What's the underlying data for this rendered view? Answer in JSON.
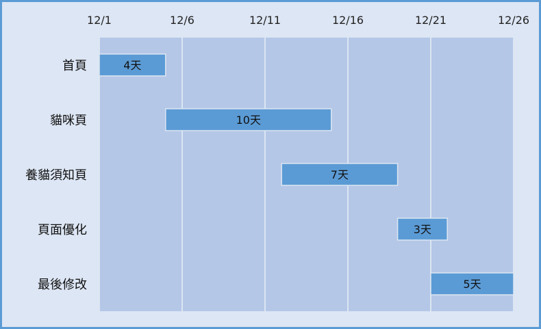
{
  "chart_data": {
    "type": "gantt",
    "x_axis": {
      "type": "date",
      "tick_labels": [
        "12/1",
        "12/6",
        "12/11",
        "12/16",
        "12/21",
        "12/26"
      ],
      "range": [
        "12/1",
        "12/26"
      ]
    },
    "tasks": [
      {
        "name": "首頁",
        "start": "12/1",
        "duration_days": 4,
        "label": "4天"
      },
      {
        "name": "貓咪頁",
        "start": "12/5",
        "duration_days": 10,
        "label": "10天"
      },
      {
        "name": "養貓須知頁",
        "start": "12/12",
        "duration_days": 7,
        "label": "7天"
      },
      {
        "name": "頁面優化",
        "start": "12/19",
        "duration_days": 3,
        "label": "3天"
      },
      {
        "name": "最後修改",
        "start": "12/21",
        "duration_days": 5,
        "label": "5天"
      }
    ],
    "grid": true,
    "colors": {
      "plot_area": "#b4c7e7",
      "bar": "#5b9bd5",
      "bar_outline": "#dce6f2",
      "gridline": "#dce6f2",
      "background": "#dde6f4",
      "frame": "#5b9bd5"
    }
  }
}
